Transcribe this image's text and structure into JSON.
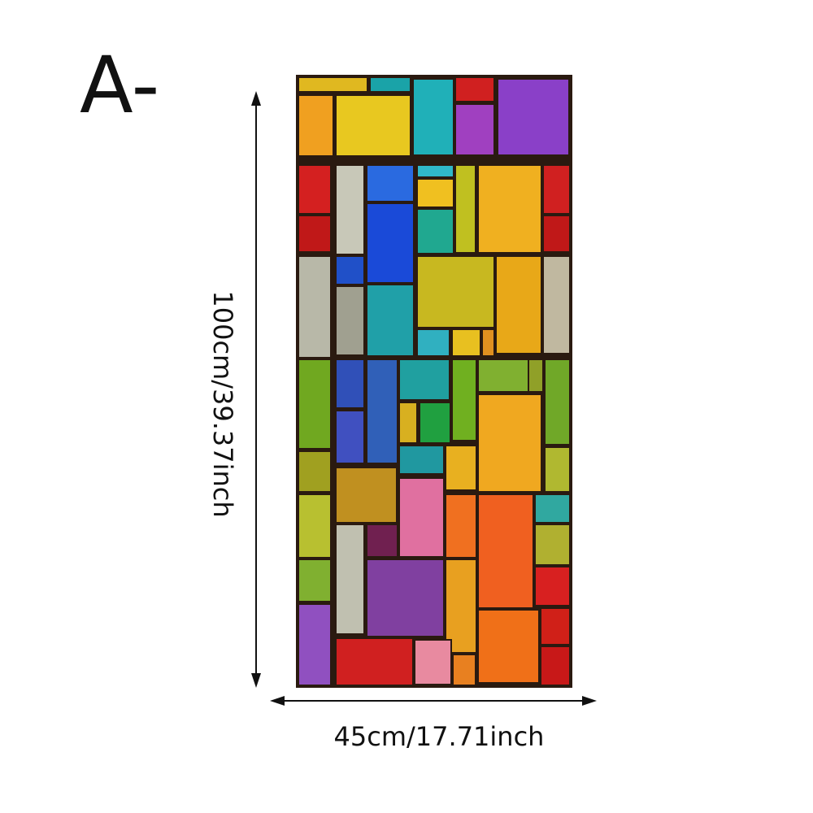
{
  "label": "A-",
  "height_label": "100cm/39.37inch",
  "width_label": "45cm/17.71inch"
}
